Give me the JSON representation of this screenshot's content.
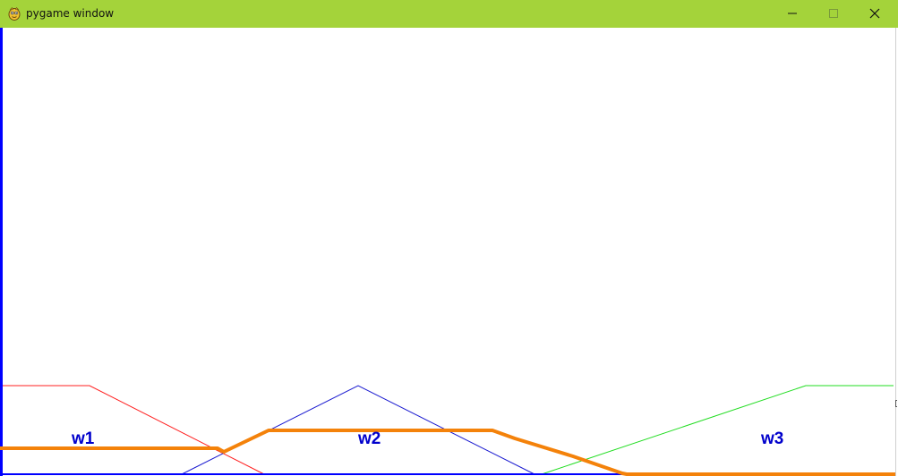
{
  "window": {
    "title": "pygame window",
    "icon": "pygame-snake-icon",
    "titlebar_color": "#a4d33a",
    "controls": {
      "minimize_icon": "minimize-icon",
      "maximize_icon": "maximize-icon",
      "close_icon": "close-icon"
    }
  },
  "canvas": {
    "background": "#ffffff",
    "border_color": "#0000ff",
    "labels": {
      "w1": "w1",
      "w2": "w2",
      "w3": "w3"
    },
    "membership_colors": {
      "w1": "#ff0000",
      "w2": "#0000cc",
      "w3": "#00ee00",
      "output": "#f4820a"
    }
  }
}
